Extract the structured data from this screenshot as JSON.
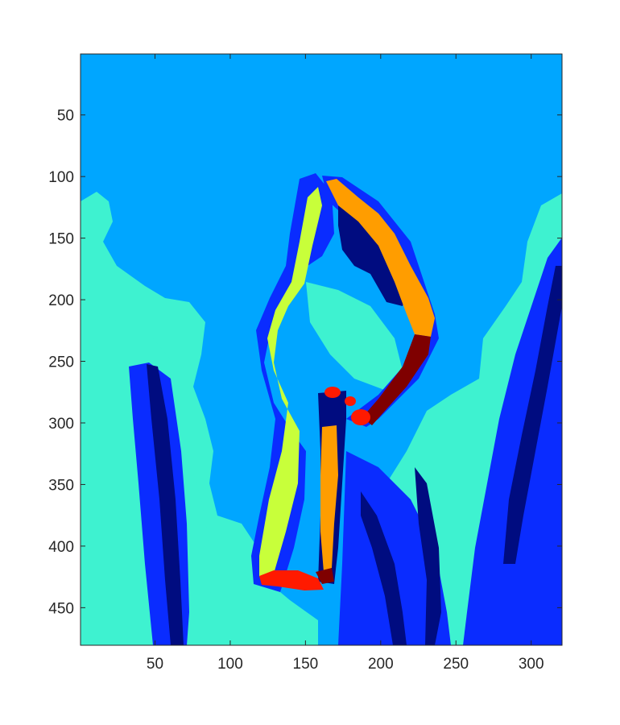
{
  "chart_data": {
    "type": "heatmap",
    "title": "",
    "xlabel": "",
    "ylabel": "",
    "colormap": "jet",
    "xlim": [
      0.5,
      320.5
    ],
    "ylim": [
      0.5,
      480.5
    ],
    "y_reversed": true,
    "x_ticks": [
      50,
      100,
      150,
      200,
      250,
      300
    ],
    "y_ticks": [
      50,
      100,
      150,
      200,
      250,
      300,
      350,
      400,
      450
    ],
    "x_tick_labels": [
      "50",
      "100",
      "150",
      "200",
      "250",
      "300"
    ],
    "y_tick_labels": [
      "50",
      "100",
      "150",
      "200",
      "250",
      "300",
      "350",
      "400",
      "450"
    ],
    "grid": false,
    "colors": {
      "background": "#00a6ff",
      "cyan": "#3ef2d0",
      "blue": "#0a2cff",
      "navy": "#000c80",
      "yellow": "#c8ff3a",
      "orange": "#ff9d00",
      "red": "#ff1a00",
      "maroon": "#7f0000"
    }
  }
}
